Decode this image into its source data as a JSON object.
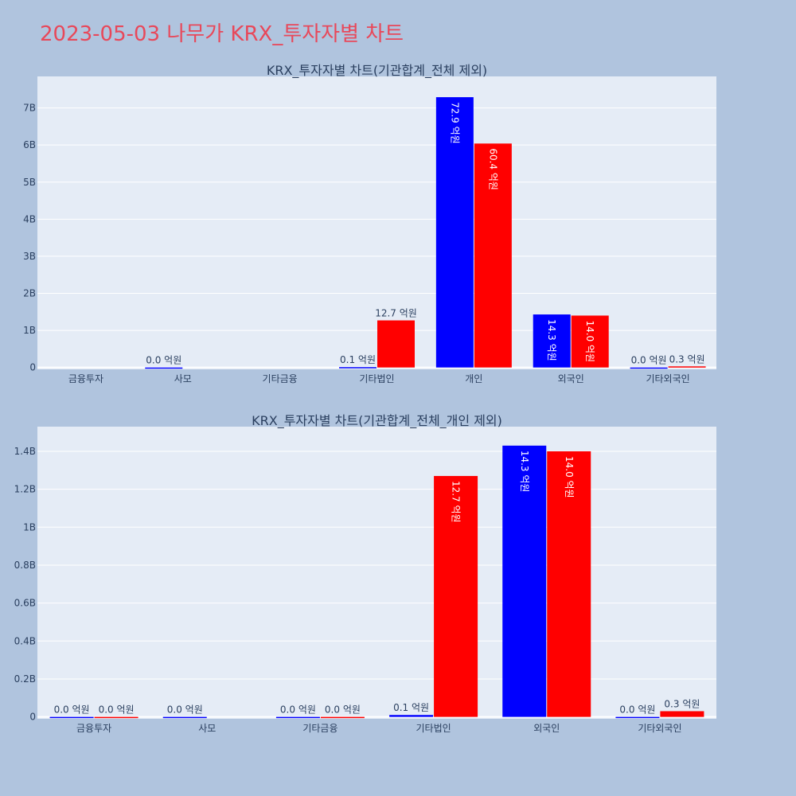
{
  "page_title": "2023-05-03 나무가 KRX_투자자별 차트",
  "colors": {
    "buy": "#0000ff",
    "sell": "#ff0000",
    "plot_bg": "#e5ecf6",
    "paper_bg": "#b0c4de",
    "title": "#e8485a"
  },
  "chart_data": [
    {
      "type": "bar",
      "title": "KRX_투자자별 차트(기관합계_전체 제외)",
      "categories": [
        "금융투자",
        "사모",
        "기타금융",
        "기타법인",
        "개인",
        "외국인",
        "기타외국인"
      ],
      "ylim": [
        -0.05,
        7.85
      ],
      "yticks": [
        0,
        1,
        2,
        3,
        4,
        5,
        6,
        7
      ],
      "ytick_labels": [
        "0",
        "1B",
        "2B",
        "3B",
        "4B",
        "5B",
        "6B",
        "7B"
      ],
      "grid": true,
      "series": [
        {
          "values": [
            null,
            0.0,
            null,
            0.01,
            7.29,
            1.43,
            0.0
          ],
          "labels": [
            "",
            "0.0 억원",
            "",
            "0.1 억원",
            "72.9 억원",
            "14.3 억원",
            "0.0 억원"
          ]
        },
        {
          "values": [
            null,
            null,
            null,
            1.27,
            6.04,
            1.4,
            0.03
          ],
          "labels": [
            "",
            "",
            "",
            "12.7 억원",
            "60.4 억원",
            "14.0 억원",
            "0.3 억원"
          ]
        }
      ]
    },
    {
      "type": "bar",
      "title": "KRX_투자자별 차트(기관합계_전체_개인 제외)",
      "categories": [
        "금융투자",
        "사모",
        "기타금융",
        "기타법인",
        "외국인",
        "기타외국인"
      ],
      "ylim": [
        -0.01,
        1.53
      ],
      "yticks": [
        0,
        0.2,
        0.4,
        0.6,
        0.8,
        1.0,
        1.2,
        1.4
      ],
      "ytick_labels": [
        "0",
        "0.2B",
        "0.4B",
        "0.6B",
        "0.8B",
        "1B",
        "1.2B",
        "1.4B"
      ],
      "grid": true,
      "series": [
        {
          "values": [
            0.0,
            0.0,
            0.0,
            0.01,
            1.43,
            0.0
          ],
          "labels": [
            "0.0 억원",
            "0.0 억원",
            "0.0 억원",
            "0.1 억원",
            "14.3 억원",
            "0.0 억원"
          ]
        },
        {
          "values": [
            0.0,
            null,
            0.0,
            1.27,
            1.4,
            0.03
          ],
          "labels": [
            "0.0 억원",
            "",
            "0.0 억원",
            "12.7 억원",
            "14.0 억원",
            "0.3 억원"
          ]
        }
      ]
    }
  ]
}
